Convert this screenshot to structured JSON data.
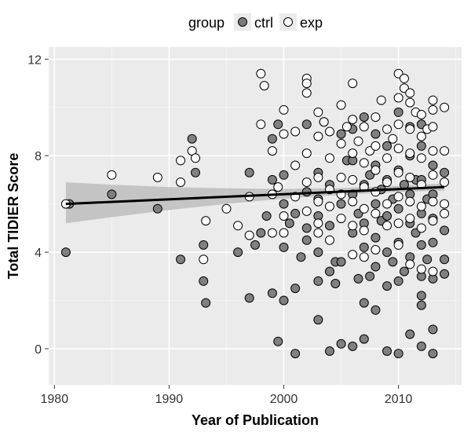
{
  "chart_data": {
    "type": "scatter",
    "xlabel": "Year of Publication",
    "ylabel": "Total TIDIER Score",
    "xlim": [
      1979.5,
      2015.5
    ],
    "ylim": [
      -1.5,
      12.5
    ],
    "x_ticks": [
      1980,
      1990,
      2000,
      2010
    ],
    "y_ticks": [
      0,
      4,
      8,
      12
    ],
    "grid": true,
    "legend": {
      "title": "group",
      "position": "top",
      "entries": [
        {
          "name": "ctrl",
          "fill": "#7a7a7a"
        },
        {
          "name": "exp",
          "fill": "#ffffff"
        }
      ]
    },
    "trend_line": {
      "x": [
        1981,
        2014
      ],
      "y": [
        6.0,
        6.7
      ]
    },
    "confidence_band": {
      "x": [
        1981,
        1985,
        1990,
        1995,
        2000,
        2005,
        2010,
        2014
      ],
      "lower": [
        5.2,
        5.45,
        5.75,
        6.0,
        6.22,
        6.38,
        6.5,
        6.55
      ],
      "upper": [
        6.9,
        6.8,
        6.7,
        6.65,
        6.62,
        6.66,
        6.75,
        6.85
      ]
    },
    "series": [
      {
        "name": "ctrl",
        "points": [
          [
            1981,
            4
          ],
          [
            1981.3,
            6
          ],
          [
            1985,
            6.4
          ],
          [
            1989,
            5.8
          ],
          [
            1991,
            3.7
          ],
          [
            1992,
            8.7
          ],
          [
            1992.3,
            7.3
          ],
          [
            1993,
            2.8
          ],
          [
            1993.2,
            1.9
          ],
          [
            1993,
            4.3
          ],
          [
            1996,
            4
          ],
          [
            1997,
            2.1
          ],
          [
            1997,
            7.3
          ],
          [
            1997.5,
            4.3
          ],
          [
            1998,
            4.8
          ],
          [
            1998.5,
            5.5
          ],
          [
            1999,
            8.7
          ],
          [
            1999,
            7
          ],
          [
            1999,
            2.3
          ],
          [
            1999.5,
            0.3
          ],
          [
            1999.5,
            9.3
          ],
          [
            2000,
            2
          ],
          [
            2000,
            6
          ],
          [
            2000,
            7.2
          ],
          [
            2000,
            4.2
          ],
          [
            2000.5,
            5.2
          ],
          [
            2001,
            -0.2
          ],
          [
            2001,
            2.5
          ],
          [
            2001,
            5.6
          ],
          [
            2001.5,
            3.8
          ],
          [
            2002,
            5
          ],
          [
            2002,
            6.5
          ],
          [
            2002,
            9.3
          ],
          [
            2002,
            4.5
          ],
          [
            2003,
            1.2
          ],
          [
            2003,
            2.8
          ],
          [
            2003,
            4
          ],
          [
            2003,
            5.5
          ],
          [
            2003,
            6.2
          ],
          [
            2003,
            7.3
          ],
          [
            2003.5,
            9.4
          ],
          [
            2004,
            3.2
          ],
          [
            2004,
            -0.1
          ],
          [
            2004,
            5.1
          ],
          [
            2004,
            6.8
          ],
          [
            2004.5,
            2.7
          ],
          [
            2004.5,
            3.6
          ],
          [
            2005,
            0.2
          ],
          [
            2005,
            3.6
          ],
          [
            2005,
            6
          ],
          [
            2005,
            8.9
          ],
          [
            2005.5,
            7.8
          ],
          [
            2006,
            0.1
          ],
          [
            2006,
            4.8
          ],
          [
            2006,
            6.4
          ],
          [
            2006,
            7.8
          ],
          [
            2006,
            9.1
          ],
          [
            2006.5,
            2.9
          ],
          [
            2006.5,
            5.6
          ],
          [
            2007,
            0.4
          ],
          [
            2007,
            1.9
          ],
          [
            2007,
            4.2
          ],
          [
            2007,
            5.2
          ],
          [
            2007,
            6.8
          ],
          [
            2007,
            9.6
          ],
          [
            2007.5,
            3
          ],
          [
            2007.5,
            7.2
          ],
          [
            2008,
            1.6
          ],
          [
            2008,
            3.4
          ],
          [
            2008,
            4.6
          ],
          [
            2008,
            6
          ],
          [
            2008,
            7.6
          ],
          [
            2008,
            8.9
          ],
          [
            2008.5,
            5.3
          ],
          [
            2008.5,
            6.6
          ],
          [
            2009,
            -0.1
          ],
          [
            2009,
            2.6
          ],
          [
            2009,
            4
          ],
          [
            2009,
            5.5
          ],
          [
            2009,
            7
          ],
          [
            2009,
            8.4
          ],
          [
            2009.5,
            3.6
          ],
          [
            2009.5,
            6.2
          ],
          [
            2010,
            -0.2
          ],
          [
            2010,
            2.8
          ],
          [
            2010,
            4.4
          ],
          [
            2010,
            5.8
          ],
          [
            2010,
            7.4
          ],
          [
            2010,
            9.8
          ],
          [
            2010.5,
            3.2
          ],
          [
            2010.5,
            6.8
          ],
          [
            2011,
            0.6
          ],
          [
            2011,
            3.8
          ],
          [
            2011,
            5.2
          ],
          [
            2011,
            6.4
          ],
          [
            2011,
            8
          ],
          [
            2011,
            9.2
          ],
          [
            2011.5,
            4.8
          ],
          [
            2011.5,
            7
          ],
          [
            2012,
            0.1
          ],
          [
            2012,
            1.8
          ],
          [
            2012,
            2.2
          ],
          [
            2012,
            3
          ],
          [
            2012,
            4.3
          ],
          [
            2012,
            5.6
          ],
          [
            2012,
            7
          ],
          [
            2012,
            8.4
          ],
          [
            2012,
            9.3
          ],
          [
            2012.5,
            3.7
          ],
          [
            2012.5,
            6.2
          ],
          [
            2013,
            -0.2
          ],
          [
            2013,
            0.8
          ],
          [
            2013,
            2.9
          ],
          [
            2013,
            4.4
          ],
          [
            2013,
            5.4
          ],
          [
            2013,
            6.4
          ],
          [
            2013,
            7.6
          ],
          [
            2014,
            3.1
          ],
          [
            2014,
            3.7
          ],
          [
            2014,
            4.9
          ],
          [
            2014,
            7.3
          ]
        ]
      },
      {
        "name": "exp",
        "points": [
          [
            1981,
            6
          ],
          [
            1985,
            7.2
          ],
          [
            1989,
            7.1
          ],
          [
            1991,
            7.8
          ],
          [
            1991,
            6.9
          ],
          [
            1992,
            8.2
          ],
          [
            1992.3,
            7.9
          ],
          [
            1993,
            3.7
          ],
          [
            1993.2,
            5.3
          ],
          [
            1995,
            5.8
          ],
          [
            1996,
            5.1
          ],
          [
            1997,
            4.7
          ],
          [
            1997,
            6.3
          ],
          [
            1998,
            11.4
          ],
          [
            1998.3,
            10.9
          ],
          [
            1998,
            9.3
          ],
          [
            1999,
            8.2
          ],
          [
            1999,
            6.4
          ],
          [
            1999,
            4.8
          ],
          [
            1999.5,
            6.7
          ],
          [
            2000,
            9.9
          ],
          [
            2000,
            8.9
          ],
          [
            2000,
            5.5
          ],
          [
            2000,
            4.8
          ],
          [
            2001,
            7.6
          ],
          [
            2001,
            9
          ],
          [
            2001,
            6.3
          ],
          [
            2002,
            11.2
          ],
          [
            2002,
            11
          ],
          [
            2002,
            10.6
          ],
          [
            2002,
            8.1
          ],
          [
            2002,
            6.9
          ],
          [
            2002,
            5.7
          ],
          [
            2003,
            9.8
          ],
          [
            2003,
            8.8
          ],
          [
            2003,
            7.1
          ],
          [
            2003,
            6.1
          ],
          [
            2003,
            5.2
          ],
          [
            2003,
            4.8
          ],
          [
            2003.5,
            9.4
          ],
          [
            2004,
            9
          ],
          [
            2004,
            7.9
          ],
          [
            2004,
            6.6
          ],
          [
            2004,
            5.9
          ],
          [
            2004,
            4.5
          ],
          [
            2005,
            10.1
          ],
          [
            2005,
            8.5
          ],
          [
            2005,
            7.1
          ],
          [
            2005,
            6.4
          ],
          [
            2005,
            5.4
          ],
          [
            2005.5,
            9.2
          ],
          [
            2006,
            11
          ],
          [
            2006,
            9.5
          ],
          [
            2006,
            8.1
          ],
          [
            2006,
            7
          ],
          [
            2006,
            6.1
          ],
          [
            2006,
            5.1
          ],
          [
            2006,
            3.9
          ],
          [
            2006.5,
            8.6
          ],
          [
            2007,
            9.2
          ],
          [
            2007,
            7.7
          ],
          [
            2007,
            6.7
          ],
          [
            2007,
            5.8
          ],
          [
            2007,
            4.9
          ],
          [
            2007,
            3.8
          ],
          [
            2007.5,
            8.2
          ],
          [
            2008,
            9.6
          ],
          [
            2008,
            8.4
          ],
          [
            2008,
            7.4
          ],
          [
            2008,
            6.5
          ],
          [
            2008,
            5.6
          ],
          [
            2008,
            4.1
          ],
          [
            2008.5,
            10.3
          ],
          [
            2009,
            9.1
          ],
          [
            2009,
            7.9
          ],
          [
            2009,
            6.9
          ],
          [
            2009,
            6
          ],
          [
            2009,
            5.1
          ],
          [
            2009.5,
            8.7
          ],
          [
            2010,
            11.4
          ],
          [
            2010,
            10.4
          ],
          [
            2010,
            9.3
          ],
          [
            2010,
            8.3
          ],
          [
            2010,
            7.3
          ],
          [
            2010,
            6.3
          ],
          [
            2010,
            5.2
          ],
          [
            2010,
            4.3
          ],
          [
            2010.5,
            11.2
          ],
          [
            2010.5,
            10.8
          ],
          [
            2011,
            10.6
          ],
          [
            2011,
            10.2
          ],
          [
            2011,
            9.1
          ],
          [
            2011,
            8.1
          ],
          [
            2011,
            7.1
          ],
          [
            2011,
            6.1
          ],
          [
            2011,
            5.4
          ],
          [
            2011,
            3.5
          ],
          [
            2011.5,
            9.8
          ],
          [
            2012,
            9.7
          ],
          [
            2012,
            8.8
          ],
          [
            2012,
            7.9
          ],
          [
            2012,
            6.8
          ],
          [
            2012,
            5.9
          ],
          [
            2012,
            5
          ],
          [
            2012,
            3.3
          ],
          [
            2012.5,
            9.1
          ],
          [
            2013,
            10.3
          ],
          [
            2013,
            9.9
          ],
          [
            2013,
            9.2
          ],
          [
            2013,
            8.2
          ],
          [
            2013,
            7.2
          ],
          [
            2013,
            6.1
          ],
          [
            2013,
            5.3
          ],
          [
            2013,
            3.2
          ],
          [
            2014,
            10
          ],
          [
            2014,
            8.2
          ],
          [
            2014,
            6.9
          ],
          [
            2014,
            6
          ],
          [
            2014,
            5.6
          ]
        ]
      }
    ]
  }
}
